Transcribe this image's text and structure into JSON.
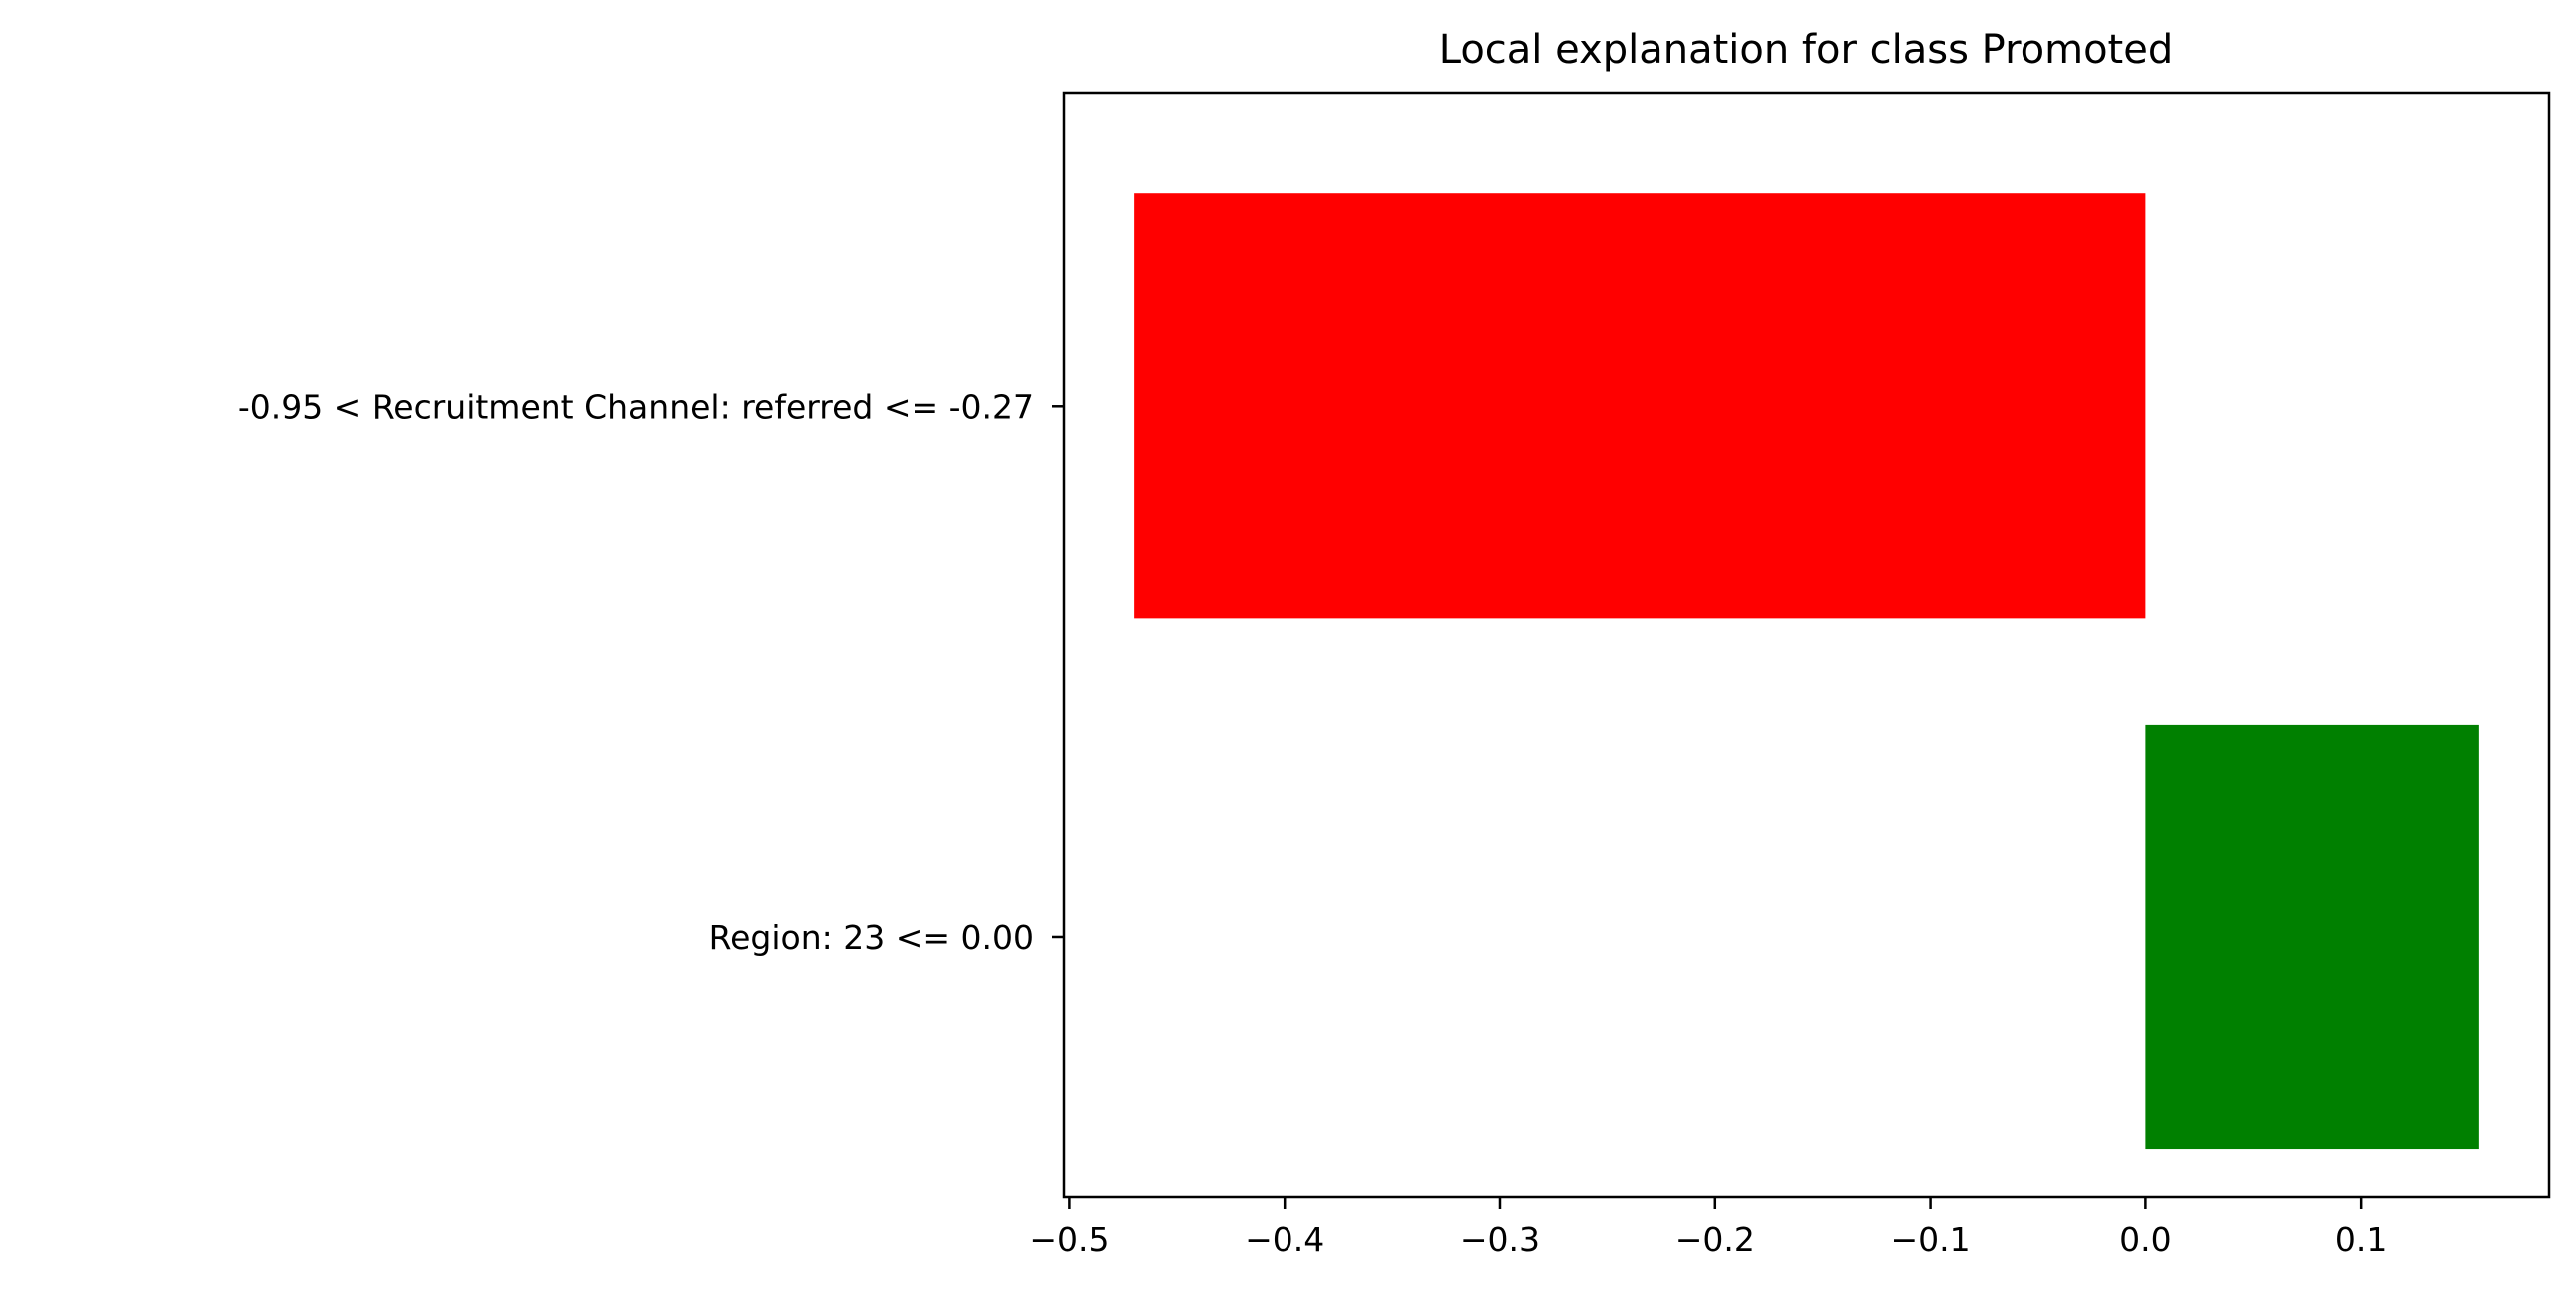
{
  "chart_data": {
    "type": "bar",
    "orientation": "horizontal",
    "title": "Local explanation for class Promoted",
    "xlabel": "",
    "ylabel": "",
    "categories": [
      "-0.95 < Recruitment Channel: referred <= -0.27",
      "Region: 23 <= 0.00"
    ],
    "values": [
      -0.47,
      0.155
    ],
    "bar_colors": [
      "#ff0000",
      "#008000"
    ],
    "xlim": [
      -0.5025,
      0.1875
    ],
    "xticks": [
      -0.5,
      -0.4,
      -0.3,
      -0.2,
      -0.1,
      0.0,
      0.1
    ],
    "xtick_labels": [
      "−0.5",
      "−0.4",
      "−0.3",
      "−0.2",
      "−0.1",
      "0.0",
      "0.1"
    ],
    "grid": false,
    "legend": "none"
  }
}
